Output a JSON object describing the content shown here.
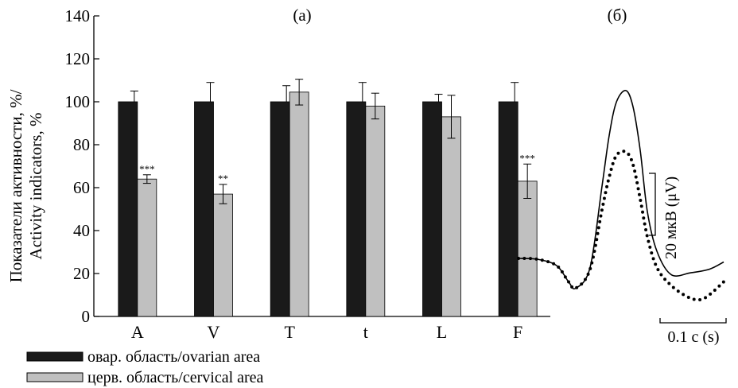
{
  "chart_data": [
    {
      "type": "bar",
      "panel_label": "(а)",
      "categories": [
        "A",
        "V",
        "T",
        "t",
        "L",
        "F"
      ],
      "ylabel_lines": [
        "Показатели активности, %/",
        "Activity indicators, %"
      ],
      "ylim": [
        0,
        140
      ],
      "yticks": [
        0,
        20,
        40,
        60,
        80,
        100,
        120,
        140
      ],
      "series": [
        {
          "name": "овар. область/ovarian area",
          "color": "#1a1a1a",
          "values": [
            100,
            100,
            100,
            100,
            100,
            100
          ],
          "errors": [
            5,
            9,
            7.5,
            9,
            3.5,
            9
          ]
        },
        {
          "name": "церв. область/cervical area",
          "color": "#c0c0c0",
          "values": [
            64,
            57,
            104.5,
            98,
            93,
            63
          ],
          "errors": [
            2,
            4.5,
            6,
            6,
            10,
            8
          ]
        }
      ],
      "significance": [
        "***",
        "**",
        "",
        "",
        "",
        "***"
      ],
      "legend_position": "bottom-left"
    },
    {
      "type": "line",
      "panel_label": "(б)",
      "series": [
        {
          "style": "solid",
          "x": [
            0,
            0.04,
            0.08,
            0.105,
            0.12,
            0.15,
            0.175,
            0.19,
            0.205,
            0.225,
            0.24,
            0.255,
            0.27,
            0.29,
            0.32,
            0.36,
            0.4,
            0.43
          ],
          "y": [
            0,
            -0.5,
            -4,
            -13,
            -16.5,
            -5,
            40,
            68,
            86.5,
            93,
            84,
            60,
            26,
            4,
            -9,
            -8,
            -6,
            -2
          ]
        },
        {
          "style": "dotted",
          "x": [
            0,
            0.04,
            0.08,
            0.105,
            0.12,
            0.15,
            0.175,
            0.19,
            0.205,
            0.225,
            0.24,
            0.255,
            0.27,
            0.29,
            0.32,
            0.36,
            0.39,
            0.43
          ],
          "y": [
            0,
            -0.5,
            -4,
            -13,
            -16.5,
            -6,
            27,
            45,
            57,
            59,
            52,
            33,
            12,
            -5,
            -15,
            -22,
            -22,
            -13
          ]
        }
      ],
      "scale_bars": {
        "voltage": "20 мкВ (μV)",
        "voltage_value_uV": 20,
        "time": "0.1 с (s)",
        "time_value_s": 0.1
      }
    }
  ]
}
